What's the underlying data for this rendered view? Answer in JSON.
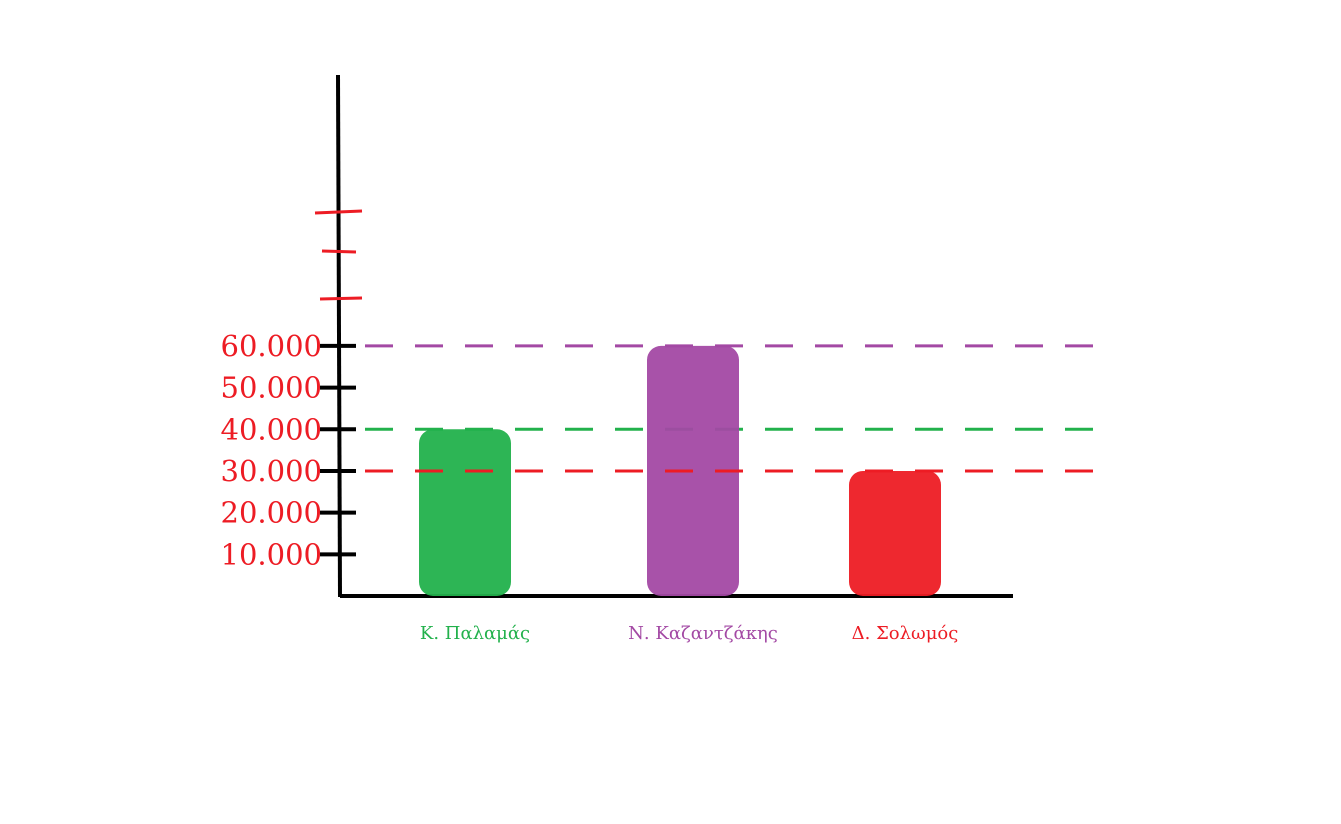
{
  "chart_data": {
    "type": "bar",
    "categories": [
      "Κ. Παλαμάς",
      "Ν. Καζαντζάκης",
      "Δ. Σολωμός"
    ],
    "values": [
      40000,
      60000,
      30000
    ],
    "colors": [
      "#22b14c",
      "#a349a4",
      "#ed1c24"
    ],
    "ylim": [
      0,
      125000
    ],
    "yticks": [
      {
        "value": 10000,
        "label": "10.000"
      },
      {
        "value": 20000,
        "label": "20.000"
      },
      {
        "value": 30000,
        "label": "30.000"
      },
      {
        "value": 40000,
        "label": "40.000"
      },
      {
        "value": 50000,
        "label": "50.000"
      },
      {
        "value": 60000,
        "label": "60.000"
      }
    ]
  }
}
